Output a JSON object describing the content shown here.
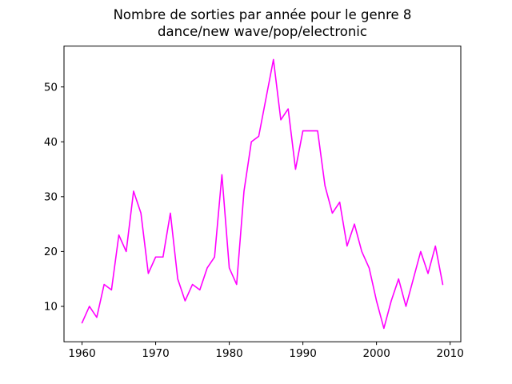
{
  "title_line1": "Nombre de sorties par année pour le genre 8",
  "title_line2": "dance/new wave/pop/electronic",
  "chart_data": {
    "type": "line",
    "title": "Nombre de sorties par année pour le genre 8\ndance/new wave/pop/electronic",
    "xlabel": "",
    "ylabel": "",
    "line_color": "#FF00FF",
    "background": "#FFFFFF",
    "grid": false,
    "legend": null,
    "xticks": [
      1960,
      1970,
      1980,
      1990,
      2000,
      2010
    ],
    "yticks": [
      10,
      20,
      30,
      40,
      50
    ],
    "xlim": [
      1957.55,
      2011.45
    ],
    "ylim": [
      3.55,
      57.45
    ],
    "x": [
      1960,
      1961,
      1962,
      1963,
      1964,
      1965,
      1966,
      1967,
      1968,
      1969,
      1970,
      1971,
      1972,
      1973,
      1974,
      1975,
      1976,
      1977,
      1978,
      1979,
      1980,
      1981,
      1982,
      1983,
      1984,
      1985,
      1986,
      1987,
      1988,
      1989,
      1990,
      1991,
      1992,
      1993,
      1994,
      1995,
      1996,
      1997,
      1998,
      1999,
      2000,
      2001,
      2002,
      2003,
      2004,
      2005,
      2006,
      2007,
      2008,
      2009
    ],
    "values": [
      7,
      10,
      8,
      14,
      13,
      23,
      20,
      31,
      27,
      16,
      19,
      19,
      27,
      15,
      11,
      14,
      13,
      17,
      19,
      34,
      17,
      14,
      31,
      40,
      41,
      48,
      55,
      44,
      46,
      35,
      42,
      42,
      42,
      32,
      27,
      29,
      21,
      25,
      20,
      17,
      11,
      6,
      11,
      15,
      10,
      15,
      20,
      16,
      21,
      14
    ]
  }
}
